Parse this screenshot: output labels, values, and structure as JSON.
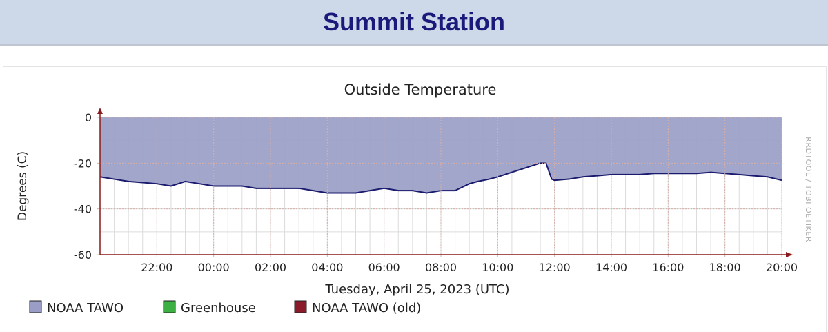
{
  "page": {
    "title": "Summit Station"
  },
  "chart_data": {
    "type": "area",
    "title": "Outside Temperature",
    "ylabel": "Degrees (C)",
    "xlabel": "Tuesday, April 25, 2023 (UTC)",
    "watermark": "RRDTOOL / TOBI OETIKER",
    "ylim": [
      -60,
      0
    ],
    "yticks": [
      0,
      -20,
      -40,
      -60
    ],
    "xlim": [
      "2023-04-24 20:00",
      "2023-04-25 20:00"
    ],
    "xticks": [
      "22:00",
      "00:00",
      "02:00",
      "04:00",
      "06:00",
      "08:00",
      "10:00",
      "12:00",
      "14:00",
      "16:00",
      "18:00",
      "20:00"
    ],
    "grid": true,
    "fill_color": "#9a9ec6",
    "line_color": "#1a1a6e",
    "legend": [
      {
        "label": "NOAA TAWO",
        "color": "#9a9ec6"
      },
      {
        "label": "Greenhouse",
        "color": "#3cb043"
      },
      {
        "label": "NOAA TAWO (old)",
        "color": "#8b1a2b"
      }
    ],
    "series": [
      {
        "name": "NOAA TAWO",
        "x_hours": [
          0,
          0.5,
          1,
          1.5,
          2,
          2.5,
          3,
          3.5,
          4,
          4.5,
          5,
          5.5,
          6,
          6.5,
          7,
          7.5,
          8,
          8.5,
          9,
          9.5,
          10,
          10.5,
          11,
          11.5,
          12,
          12.5,
          13,
          13.3,
          13.7,
          14,
          14.5,
          15,
          15.5,
          15.7,
          15.9,
          16,
          16.5,
          17,
          17.5,
          18,
          18.5,
          19,
          19.5,
          20,
          20.5,
          21,
          21.5,
          22,
          22.5,
          23,
          23.5,
          24
        ],
        "label_note": "",
        "values": [
          -26,
          -27,
          -28,
          -28.5,
          -29,
          -30,
          -28,
          -29,
          -30,
          -30,
          -30,
          -31,
          -31,
          -31,
          -31,
          -32,
          -33,
          -33,
          -33,
          -32,
          -31,
          -32,
          -32,
          -33,
          -32,
          -32,
          -29,
          -28,
          -27,
          -26,
          -24,
          -22,
          -20,
          -20,
          -27,
          -27.5,
          -27,
          -26,
          -25.5,
          -25,
          -25,
          -25,
          -24.5,
          -24.5,
          -24.5,
          -24.5,
          -24,
          -24.5,
          -25,
          -25.5,
          -26,
          -27.5
        ]
      },
      {
        "name": "Greenhouse",
        "values": []
      },
      {
        "name": "NOAA TAWO (old)",
        "values": []
      }
    ]
  }
}
